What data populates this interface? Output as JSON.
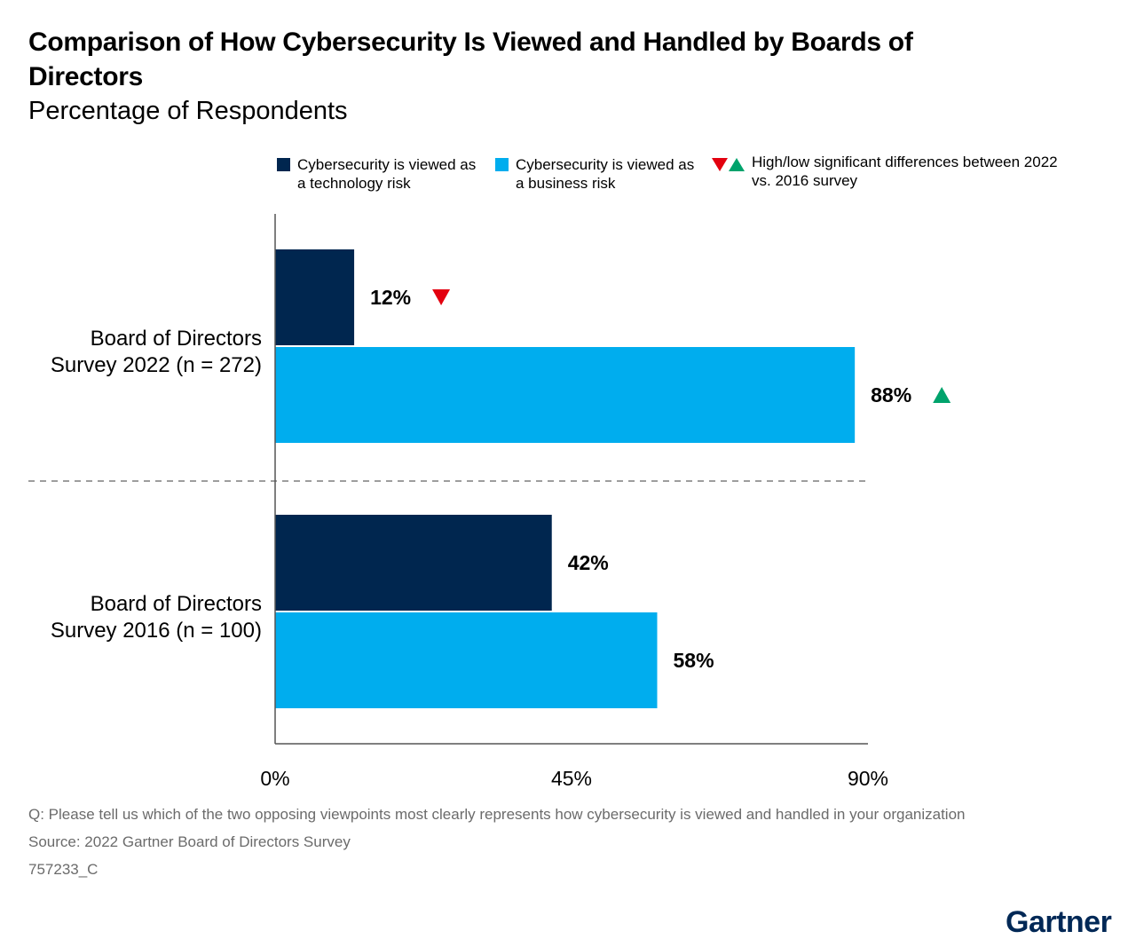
{
  "title": "Comparison of How Cybersecurity Is Viewed and Handled by Boards of Directors",
  "subtitle": "Percentage of Respondents",
  "legend": {
    "tech": "Cybersecurity is viewed as a technology risk",
    "business": "Cybersecurity is viewed as a business risk",
    "significance": "High/low significant differences between 2022 vs. 2016 survey"
  },
  "colors": {
    "tech": "#00264f",
    "business": "#00adee",
    "down": "#e3000f",
    "up": "#00a36c",
    "axis": "#555555",
    "divider": "#7f7f7f"
  },
  "chart_data": {
    "type": "bar",
    "orientation": "horizontal",
    "categories": [
      "Board of Directors Survey 2022 (n = 272)",
      "Board of Directors Survey 2016 (n = 100)"
    ],
    "series": [
      {
        "name": "Cybersecurity is viewed as a technology risk",
        "values": [
          12,
          42
        ],
        "labels": [
          "12%",
          "42%"
        ],
        "markers": [
          "down",
          null
        ]
      },
      {
        "name": "Cybersecurity is viewed as a business risk",
        "values": [
          88,
          58
        ],
        "labels": [
          "88%",
          "58%"
        ],
        "markers": [
          "up",
          null
        ]
      }
    ],
    "xlim": [
      0,
      90
    ],
    "xticks": [
      0,
      45,
      90
    ],
    "xtick_labels": [
      "0%",
      "45%",
      "90%"
    ],
    "grid": false,
    "legend_position": "top"
  },
  "footnotes": {
    "question": "Q: Please tell us which of the two opposing viewpoints most clearly represents how cybersecurity is viewed and handled in your organization",
    "source": "Source: 2022 Gartner Board of Directors Survey",
    "id": "757233_C"
  },
  "brand": "Gartner"
}
